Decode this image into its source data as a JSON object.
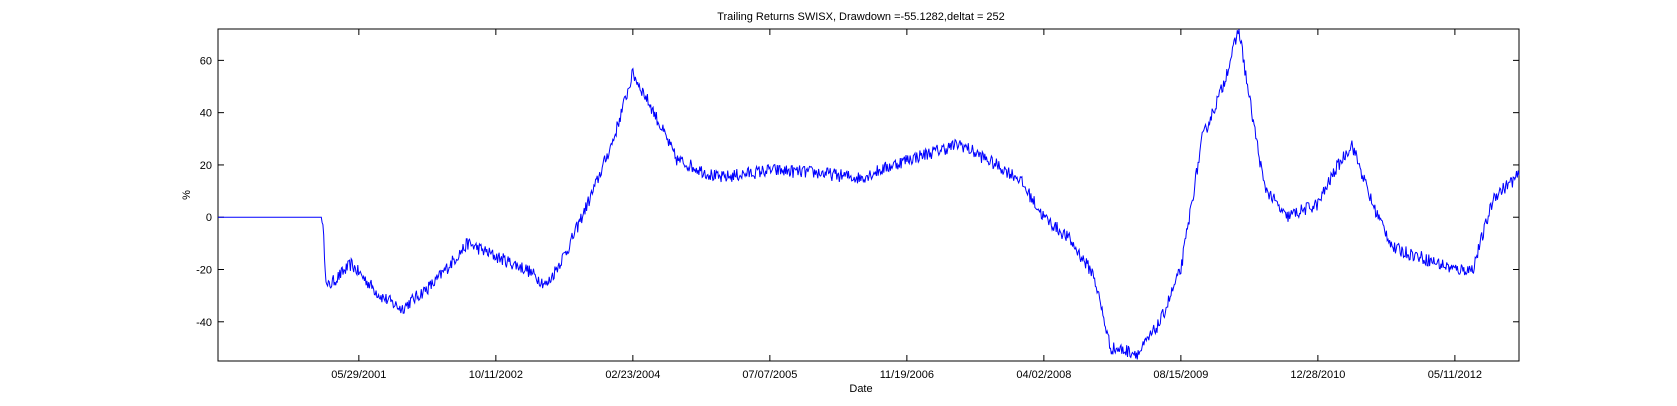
{
  "chart_data": {
    "type": "line",
    "title": "Trailing Returns SWISX, Drawdown =-55.1282,deltat = 252",
    "xlabel": "Date",
    "ylabel": "%",
    "x_tick_labels": [
      "05/29/2001",
      "10/11/2002",
      "02/23/2004",
      "07/07/2005",
      "11/19/2006",
      "04/02/2008",
      "08/15/2009",
      "12/28/2010",
      "05/11/2012"
    ],
    "y_ticks": [
      -40,
      -20,
      0,
      20,
      40,
      60
    ],
    "ylim": [
      -55,
      72
    ],
    "xlim": [
      "01/01/2000",
      "12/31/2012"
    ],
    "grid": false,
    "series": [
      {
        "color": "#0000ff",
        "x": [
          "01/01/2000",
          "01/15/2001",
          "02/01/2001",
          "05/01/2001",
          "08/15/2001",
          "11/01/2001",
          "03/01/2002",
          "07/01/2002",
          "10/11/2002",
          "02/01/2003",
          "04/15/2003",
          "07/01/2003",
          "10/01/2003",
          "12/15/2003",
          "02/23/2004",
          "05/01/2004",
          "08/01/2004",
          "01/01/2005",
          "07/07/2005",
          "01/01/2006",
          "06/01/2006",
          "11/19/2006",
          "06/01/2007",
          "01/01/2008",
          "04/02/2008",
          "07/01/2008",
          "10/01/2008",
          "12/01/2008",
          "03/15/2009",
          "06/01/2009",
          "08/15/2009",
          "11/01/2009",
          "01/15/2010",
          "03/15/2010",
          "04/15/2010",
          "06/15/2010",
          "09/01/2010",
          "12/28/2010",
          "03/01/2011",
          "05/01/2011",
          "07/15/2011",
          "10/01/2011",
          "01/01/2012",
          "05/11/2012",
          "07/15/2012",
          "10/01/2012",
          "12/31/2012"
        ],
        "y": [
          0,
          0,
          -27,
          -18,
          -30,
          -35,
          -25,
          -10,
          -15,
          -20,
          -26,
          -12,
          10,
          30,
          55,
          42,
          22,
          15,
          18,
          17,
          15,
          22,
          28,
          15,
          0,
          -8,
          -22,
          -50,
          -52,
          -40,
          -20,
          30,
          50,
          72,
          50,
          12,
          0,
          5,
          18,
          28,
          5,
          -12,
          -15,
          -20,
          -20,
          8,
          16
        ]
      }
    ]
  }
}
